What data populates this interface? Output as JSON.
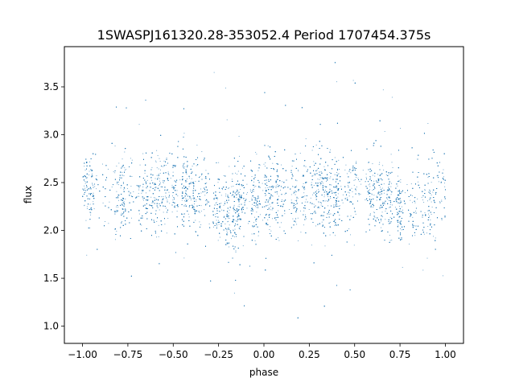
{
  "chart_data": {
    "type": "scatter",
    "title": "1SWASPJ161320.28-353052.4 Period 1707454.375s",
    "xlabel": "phase",
    "ylabel": "flux",
    "xlim": [
      -1.1,
      1.1
    ],
    "ylim": [
      0.82,
      3.92
    ],
    "x_ticks": [
      -1.0,
      -0.75,
      -0.5,
      -0.25,
      0.0,
      0.25,
      0.5,
      0.75,
      1.0
    ],
    "x_tick_labels": [
      "−1.00",
      "−0.75",
      "−0.50",
      "−0.25",
      "0.00",
      "0.25",
      "0.50",
      "0.75",
      "1.00"
    ],
    "y_ticks": [
      1.0,
      1.5,
      2.0,
      2.5,
      3.0,
      3.5
    ],
    "y_tick_labels": [
      "1.0",
      "1.5",
      "2.0",
      "2.5",
      "3.0",
      "3.5"
    ],
    "grid": false,
    "marker_color": "#1f77b4",
    "series": [
      {
        "x_range": [
          -1.0,
          1.0
        ],
        "approx_point_count": 9000,
        "baseline_flux_profile": [
          [
            -1.0,
            2.45
          ],
          [
            -0.9,
            2.4
          ],
          [
            -0.8,
            2.38
          ],
          [
            -0.7,
            2.42
          ],
          [
            -0.6,
            2.35
          ],
          [
            -0.5,
            2.45
          ],
          [
            -0.4,
            2.42
          ],
          [
            -0.3,
            2.3
          ],
          [
            -0.2,
            2.2
          ],
          [
            -0.1,
            2.28
          ],
          [
            0.0,
            2.35
          ],
          [
            0.1,
            2.4
          ],
          [
            0.2,
            2.35
          ],
          [
            0.3,
            2.42
          ],
          [
            0.4,
            2.38
          ],
          [
            0.5,
            2.45
          ],
          [
            0.6,
            2.42
          ],
          [
            0.7,
            2.32
          ],
          [
            0.8,
            2.2
          ],
          [
            0.9,
            2.28
          ],
          [
            1.0,
            2.4
          ]
        ],
        "typical_scatter": 0.2,
        "outlier_range": [
          0.95,
          3.85
        ]
      }
    ]
  }
}
